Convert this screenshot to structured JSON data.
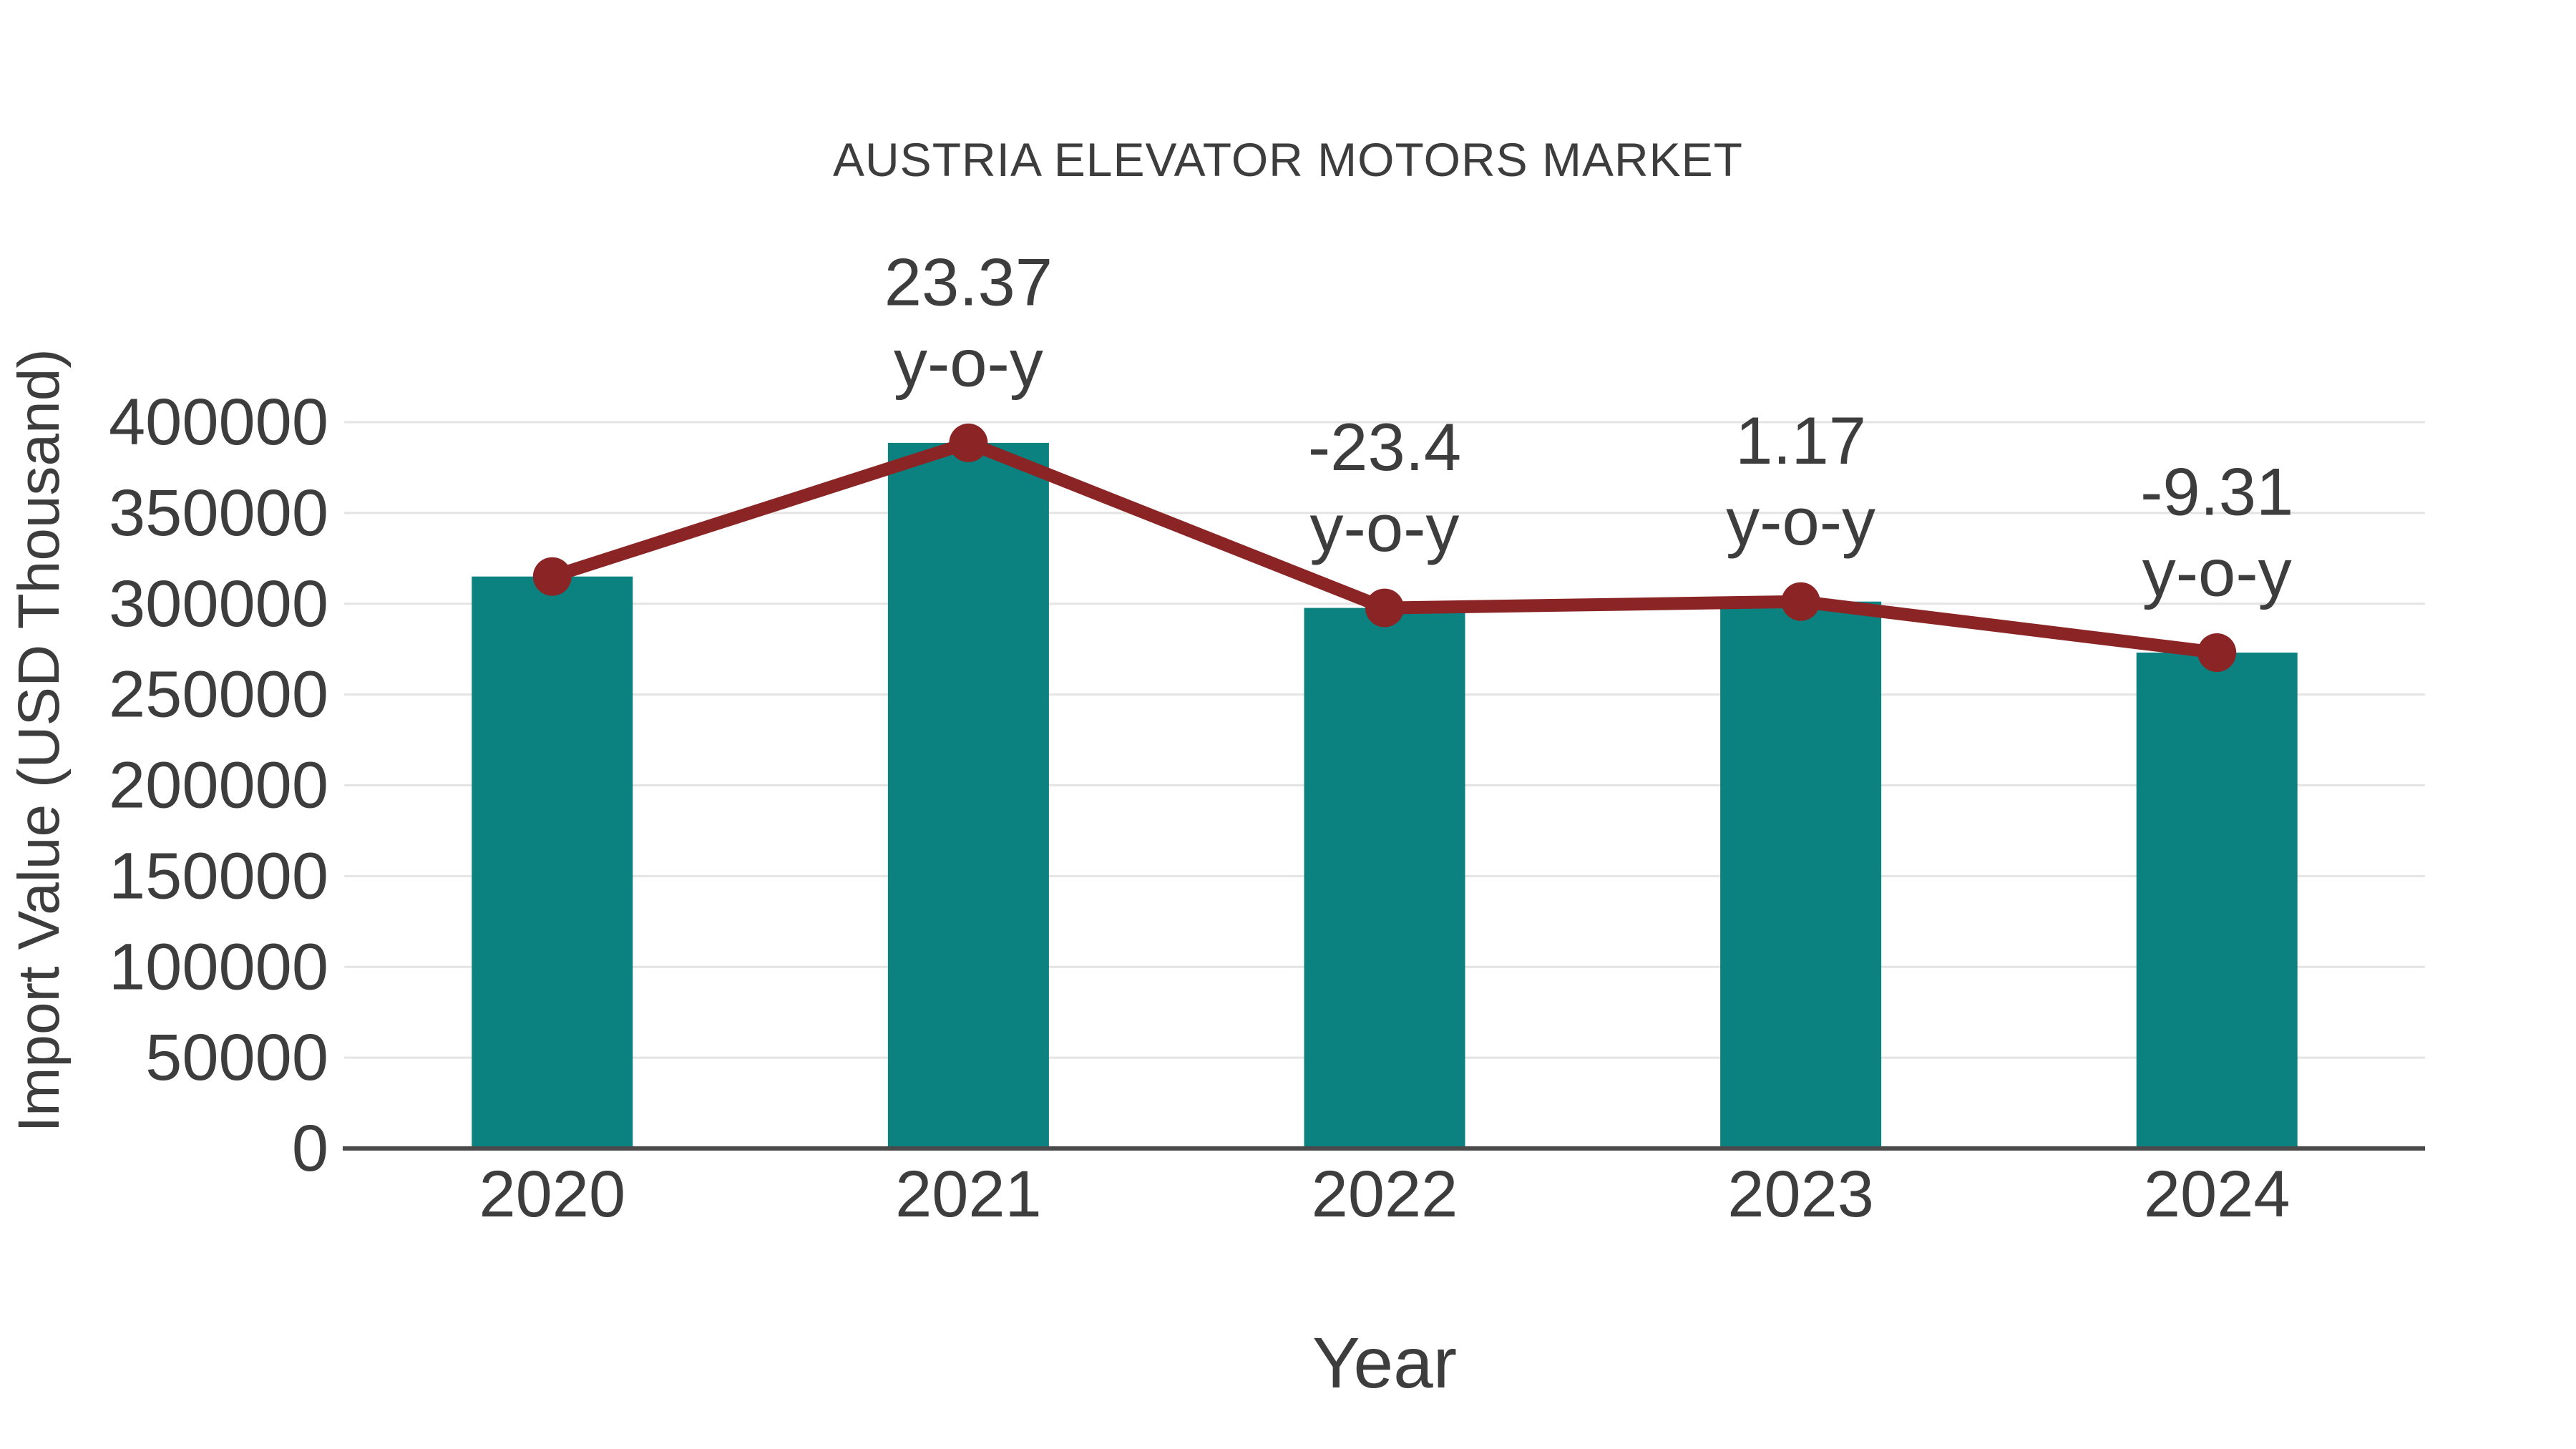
{
  "chart_data": {
    "type": "bar",
    "title": "AUSTRIA ELEVATOR MOTORS MARKET",
    "xlabel": "Year",
    "ylabel": "Import Value (USD Thousand)",
    "categories": [
      "2020",
      "2021",
      "2022",
      "2023",
      "2024"
    ],
    "series": [
      {
        "name": "Import Value (USD Thousand)",
        "type": "bar",
        "values": [
          315000,
          388600,
          297700,
          301200,
          273100
        ]
      },
      {
        "name": "y-o-y change (%)",
        "type": "line",
        "values": [
          null,
          23.37,
          -23.4,
          1.17,
          -9.31
        ],
        "note": "line connects the tops of the bars; markers at each bar top"
      }
    ],
    "annotations": [
      {
        "category": "2021",
        "line1": "23.37",
        "line2": "y-o-y"
      },
      {
        "category": "2022",
        "line1": "-23.4",
        "line2": "y-o-y"
      },
      {
        "category": "2023",
        "line1": "1.17",
        "line2": "y-o-y"
      },
      {
        "category": "2024",
        "line1": "-9.31",
        "line2": "y-o-y"
      }
    ],
    "ylim": [
      0,
      400000
    ],
    "yticks": [
      0,
      50000,
      100000,
      150000,
      200000,
      250000,
      300000,
      350000,
      400000
    ],
    "grid": "horizontal",
    "legend": "none",
    "colors": {
      "bar": "#0b8180",
      "line": "#8b2525",
      "marker": "#8b2525",
      "grid": "#e4e4e4",
      "axis_line": "#4a4a4a",
      "text": "#3d3d3d"
    }
  }
}
